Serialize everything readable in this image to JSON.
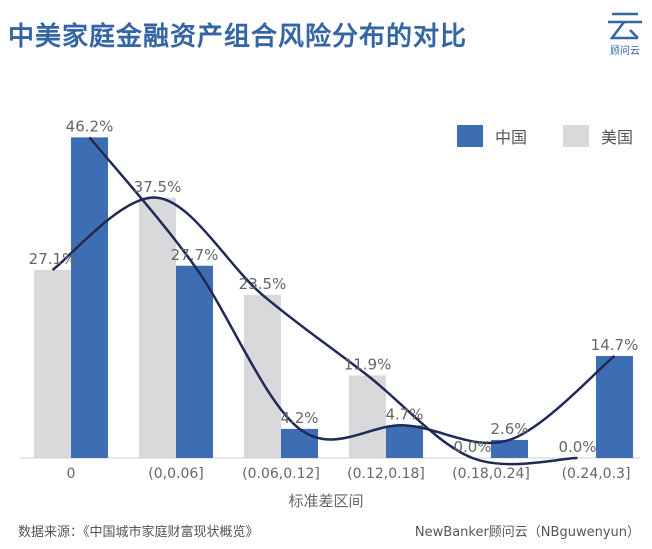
{
  "title": "中美家庭金融资产组合风险分布的对比",
  "logo": {
    "icon": "cloud-logo-icon",
    "text": "顾问云"
  },
  "footer": {
    "source": "数据来源：《中国城市家庭财富现状概览》",
    "credit": "NewBanker顾问云（NBguwenyun）"
  },
  "chart_data": {
    "type": "bar",
    "categories": [
      "0",
      "(0,0.06]",
      "(0.06,0.12]",
      "(0.12,0.18]",
      "(0.18,0.24]",
      "(0.24,0.3]"
    ],
    "series": [
      {
        "name": "美国",
        "values": [
          27.1,
          37.5,
          23.5,
          11.9,
          0.0,
          0.0
        ],
        "labels": [
          "27.1%",
          "37.5%",
          "23.5%",
          "11.9%",
          "0.0%",
          "0.0%"
        ],
        "color": "#d9d9dc"
      },
      {
        "name": "中国",
        "values": [
          46.2,
          27.7,
          4.2,
          4.7,
          2.6,
          14.7
        ],
        "labels": [
          "46.2%",
          "27.7%",
          "4.2%",
          "4.7%",
          "2.6%",
          "14.7%"
        ],
        "color": "#3d6eb4"
      }
    ],
    "xlabel": "标准差区间",
    "ylabel": "",
    "ylim": [
      0,
      50
    ],
    "legend_position": "top-right",
    "grid": false,
    "trend_line_color": "#1f2a55"
  }
}
